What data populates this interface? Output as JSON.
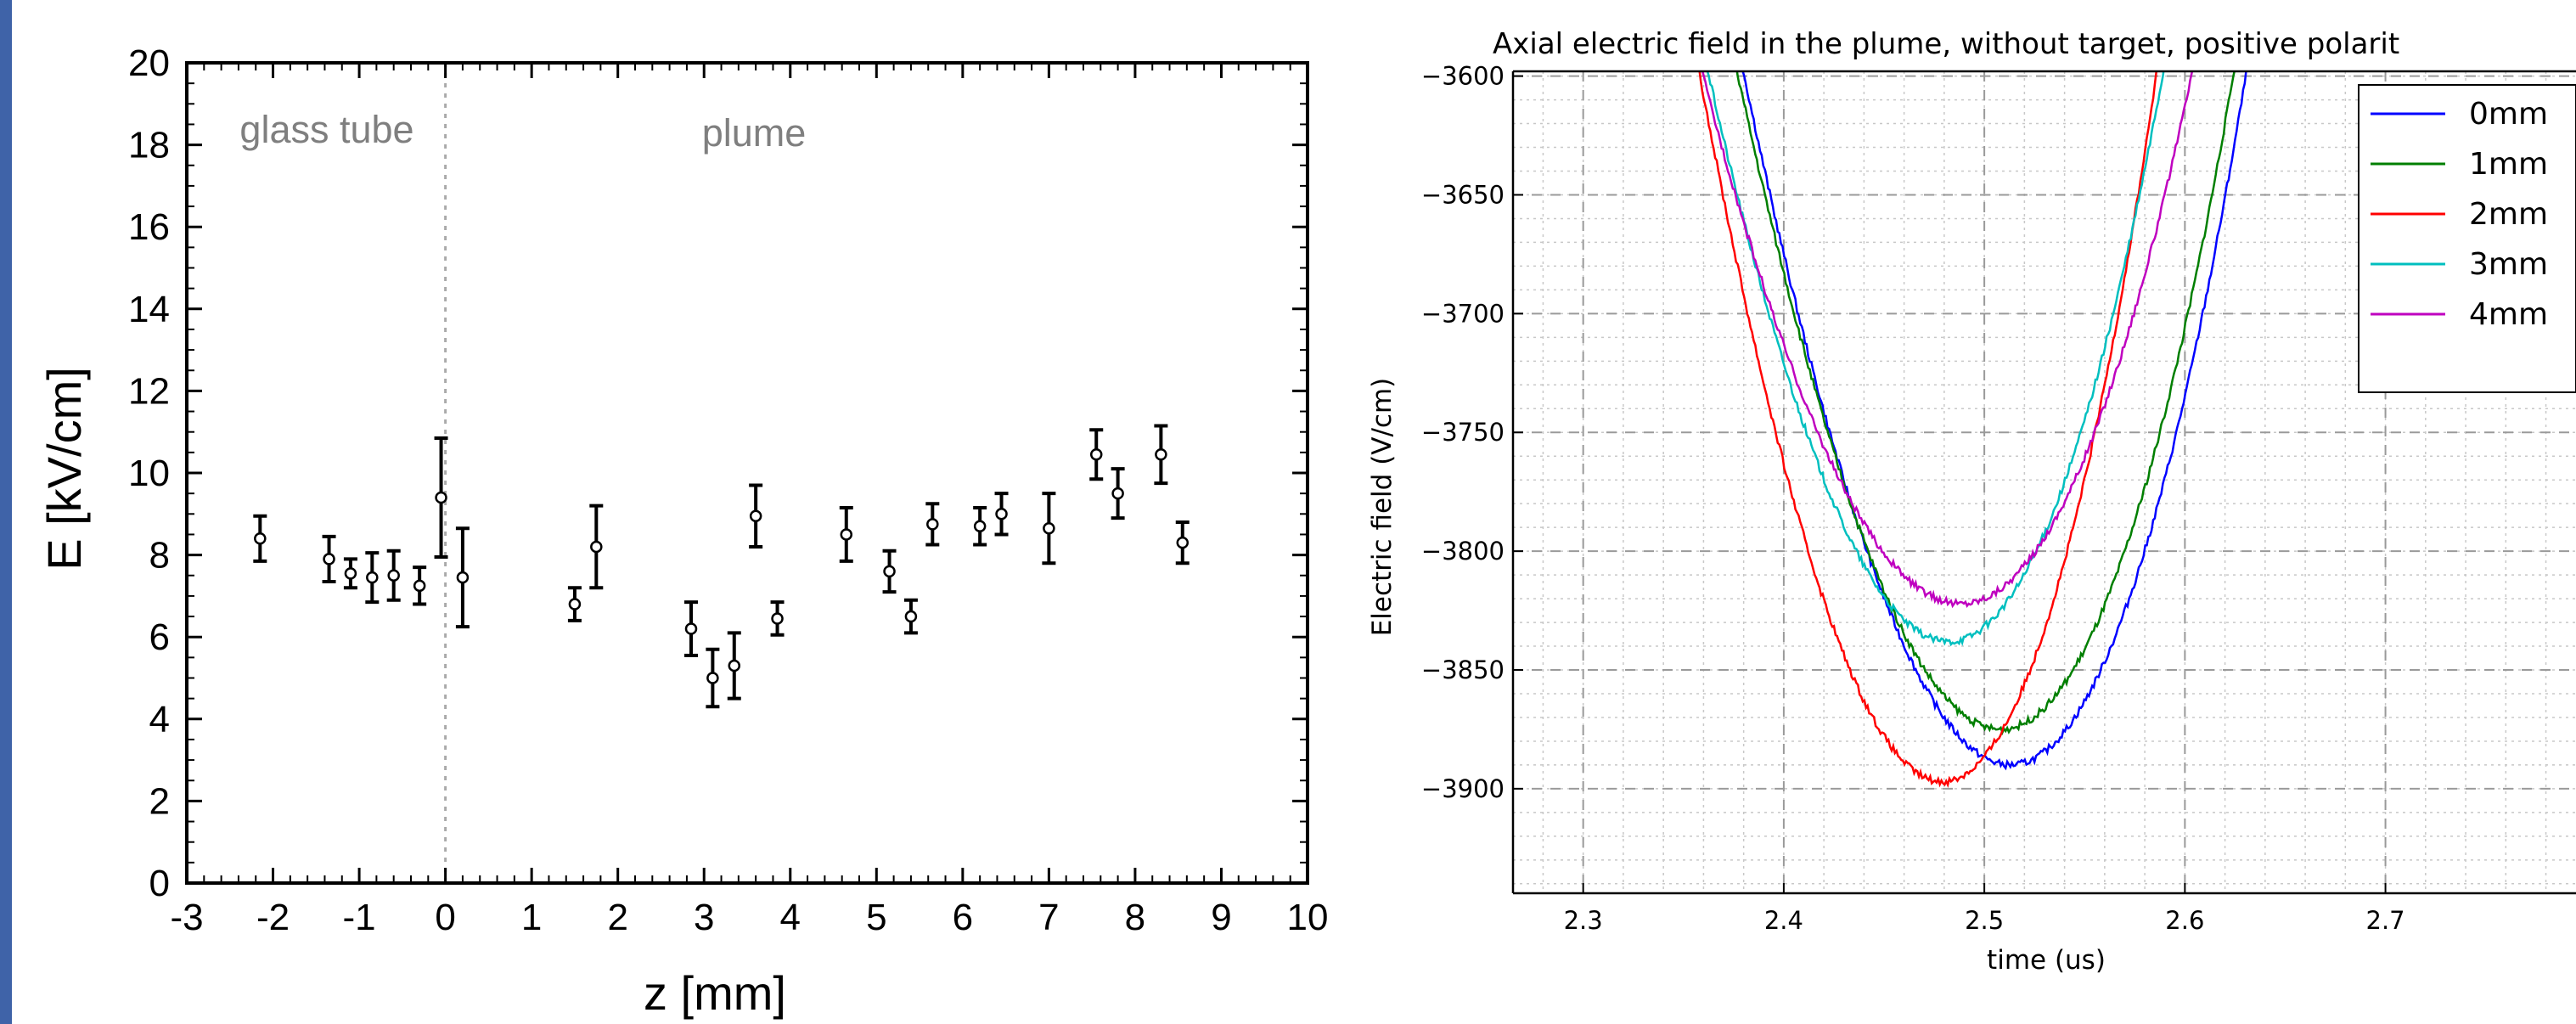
{
  "chart_data": [
    {
      "type": "scatter",
      "title": "",
      "xlabel": "z [mm]",
      "ylabel": "E [kV/cm]",
      "xlim": [
        -3,
        10
      ],
      "ylim": [
        0,
        20
      ],
      "x_ticks": [
        "-3",
        "-2",
        "-1",
        "0",
        "1",
        "2",
        "3",
        "4",
        "5",
        "6",
        "7",
        "8",
        "9",
        "10"
      ],
      "y_ticks": [
        "0",
        "2",
        "4",
        "6",
        "8",
        "10",
        "12",
        "14",
        "16",
        "18",
        "20"
      ],
      "region_labels": [
        "glass tube",
        "plume"
      ],
      "region_boundary_x": 0,
      "points": [
        {
          "x": -2.15,
          "y": 8.4,
          "err": 0.55
        },
        {
          "x": -1.35,
          "y": 7.9,
          "err": 0.55
        },
        {
          "x": -1.1,
          "y": 7.55,
          "err": 0.35
        },
        {
          "x": -0.85,
          "y": 7.45,
          "err": 0.6
        },
        {
          "x": -0.6,
          "y": 7.5,
          "err": 0.6
        },
        {
          "x": -0.3,
          "y": 7.25,
          "err": 0.45
        },
        {
          "x": -0.05,
          "y": 9.4,
          "err": 1.45
        },
        {
          "x": 0.2,
          "y": 7.45,
          "err": 1.2
        },
        {
          "x": 1.5,
          "y": 6.8,
          "err": 0.4
        },
        {
          "x": 1.75,
          "y": 8.2,
          "err": 1.0
        },
        {
          "x": 2.85,
          "y": 6.2,
          "err": 0.65
        },
        {
          "x": 3.1,
          "y": 5.0,
          "err": 0.7
        },
        {
          "x": 3.35,
          "y": 5.3,
          "err": 0.8
        },
        {
          "x": 3.6,
          "y": 8.95,
          "err": 0.75
        },
        {
          "x": 3.85,
          "y": 6.45,
          "err": 0.4
        },
        {
          "x": 4.65,
          "y": 8.5,
          "err": 0.65
        },
        {
          "x": 5.15,
          "y": 7.6,
          "err": 0.5
        },
        {
          "x": 5.4,
          "y": 6.5,
          "err": 0.4
        },
        {
          "x": 5.65,
          "y": 8.75,
          "err": 0.5
        },
        {
          "x": 6.2,
          "y": 8.7,
          "err": 0.45
        },
        {
          "x": 6.45,
          "y": 9.0,
          "err": 0.5
        },
        {
          "x": 7.0,
          "y": 8.65,
          "err": 0.85
        },
        {
          "x": 7.55,
          "y": 10.45,
          "err": 0.6
        },
        {
          "x": 7.8,
          "y": 9.5,
          "err": 0.6
        },
        {
          "x": 8.3,
          "y": 10.45,
          "err": 0.7
        },
        {
          "x": 8.55,
          "y": 8.3,
          "err": 0.5
        }
      ]
    },
    {
      "type": "line",
      "title": "Axial electric field in the plume, without target, positive polarit",
      "xlabel": "time (us)",
      "ylabel": "Electric field (V/cm)",
      "xlim": [
        2.265,
        2.795
      ],
      "ylim": [
        -3944,
        -3598
      ],
      "x_ticks": [
        "2.3",
        "2.4",
        "2.5",
        "2.6",
        "2.7"
      ],
      "y_ticks": [
        "−3600",
        "−3650",
        "−3700",
        "−3750",
        "−3800",
        "−3850",
        "−3900"
      ],
      "grid": true,
      "legend_position": "top-right",
      "series": [
        {
          "name": "0mm",
          "color": "#0000ff",
          "x_min": 2.513,
          "y_min": -3890,
          "width": 0.069
        },
        {
          "name": "1mm",
          "color": "#007f00",
          "x_min": 2.508,
          "y_min": -3875,
          "width": 0.07
        },
        {
          "name": "2mm",
          "color": "#ff0000",
          "x_min": 2.479,
          "y_min": -3897,
          "width": 0.062
        },
        {
          "name": "3mm",
          "color": "#00bfbf",
          "x_min": 2.482,
          "y_min": -3838,
          "width": 0.069
        },
        {
          "name": "4mm",
          "color": "#bf00bf",
          "x_min": 2.488,
          "y_min": -3822,
          "width": 0.077
        }
      ]
    }
  ]
}
